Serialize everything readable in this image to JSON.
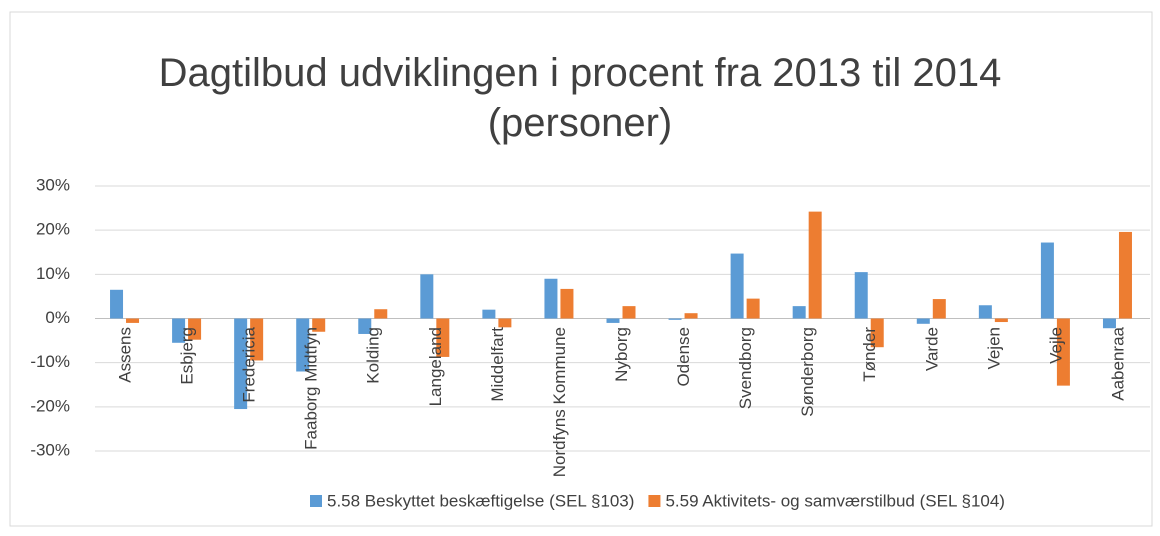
{
  "chart_data": {
    "type": "bar",
    "title": "Dagtilbud udviklingen i procent fra 2013 til 2014 (personer)",
    "categories": [
      "Assens",
      "Esbjerg",
      "Fredericia",
      "Faaborg Midtfyn",
      "Kolding",
      "Langeland",
      "Middelfart",
      "Nordfyns Kommune",
      "Nyborg",
      "Odense",
      "Svendborg",
      "Sønderborg",
      "Tønder",
      "Varde",
      "Vejen",
      "Vejle",
      "Aabenraa"
    ],
    "series": [
      {
        "name": "5.58 Beskyttet beskæftigelse (SEL §103)",
        "color": "#5b9bd5",
        "values": [
          6.5,
          -5.5,
          -20.5,
          -12,
          -3.5,
          10,
          2,
          9,
          -1,
          -0.3,
          14.7,
          2.8,
          10.5,
          -1.2,
          3,
          17.2,
          -2.2
        ]
      },
      {
        "name": "5.59 Aktivitets- og samværstilbud (SEL §104)",
        "color": "#ed7d31",
        "values": [
          -1,
          -4.8,
          -9.5,
          -3,
          2.1,
          -8.7,
          -2,
          6.7,
          2.8,
          1.2,
          4.5,
          24.2,
          -6.5,
          4.4,
          -0.8,
          -15.2,
          19.6
        ]
      }
    ],
    "ylim": [
      -30,
      30
    ],
    "yticks": [
      {
        "value": -30,
        "label": "-30%"
      },
      {
        "value": -20,
        "label": "-20%"
      },
      {
        "value": -10,
        "label": "-10%"
      },
      {
        "value": 0,
        "label": "0%"
      },
      {
        "value": 10,
        "label": "10%"
      },
      {
        "value": 20,
        "label": "20%"
      },
      {
        "value": 30,
        "label": "30%"
      }
    ],
    "grid": true,
    "legend": "bottom"
  }
}
